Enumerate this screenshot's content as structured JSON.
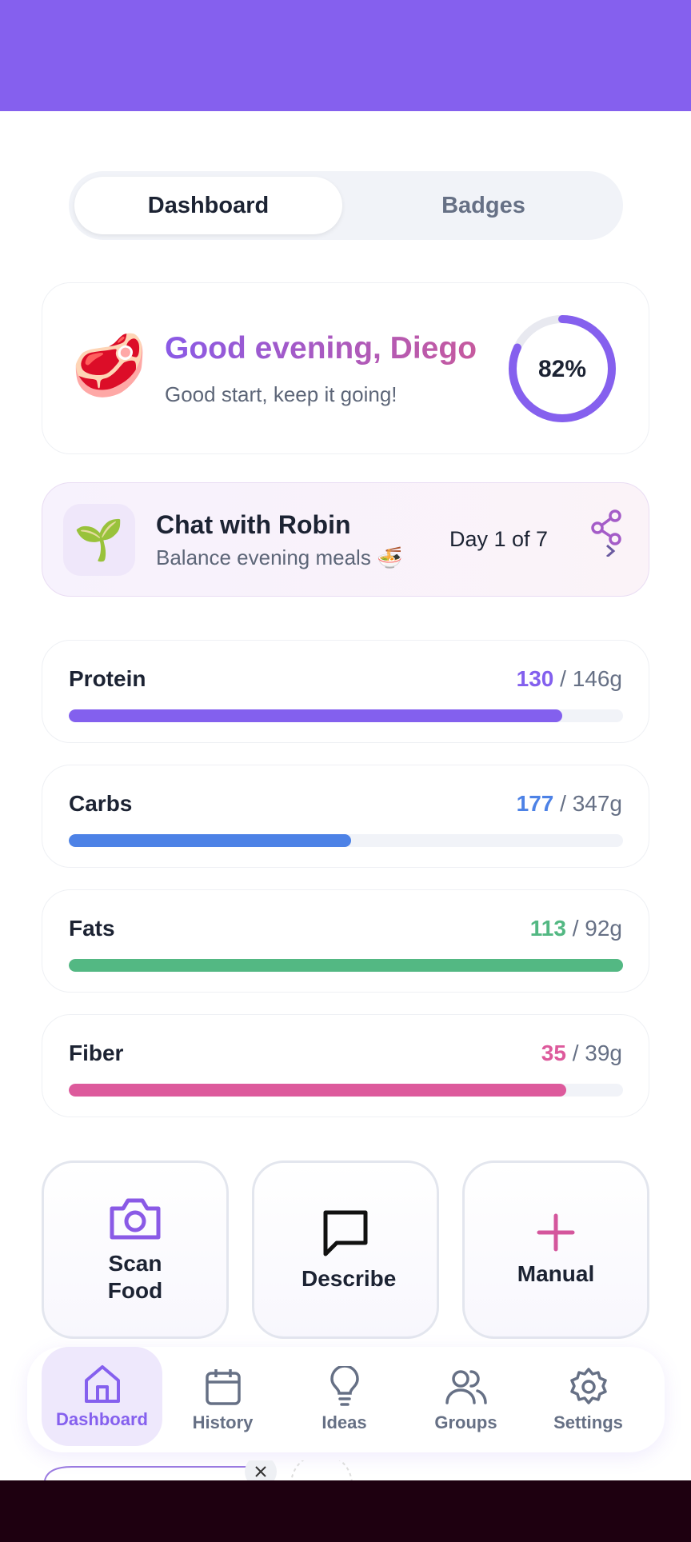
{
  "tabs": [
    "Dashboard",
    "Badges"
  ],
  "greeting": {
    "emoji": "🥩",
    "title": "Good evening, Diego",
    "subtitle": "Good start, keep it going!",
    "progress": {
      "value": 82,
      "label": "82%"
    }
  },
  "chat": {
    "icon": "🌱",
    "title": "Chat with Robin",
    "subtitle": "Balance evening meals 🍜",
    "day": "Day 1 of 7"
  },
  "macros": [
    {
      "name": "Protein",
      "consumed": 130,
      "target": {
        "value": 146,
        "label": "146g"
      },
      "color": "#8360ee"
    },
    {
      "name": "Carbs",
      "consumed": 177,
      "target": {
        "value": 347,
        "label": "347g"
      },
      "color": "#4d82e6"
    },
    {
      "name": "Fats",
      "consumed": 113,
      "target": {
        "value": 92,
        "label": "92g"
      },
      "color": "#53b883"
    },
    {
      "name": "Fiber",
      "consumed": 35,
      "target": {
        "value": 39,
        "label": "39g"
      },
      "color": "#dd5a9c"
    }
  ],
  "actions": [
    "Scan Food",
    "Describe",
    "Manual"
  ],
  "nav": [
    "Dashboard",
    "History",
    "Ideas",
    "Groups",
    "Settings"
  ]
}
